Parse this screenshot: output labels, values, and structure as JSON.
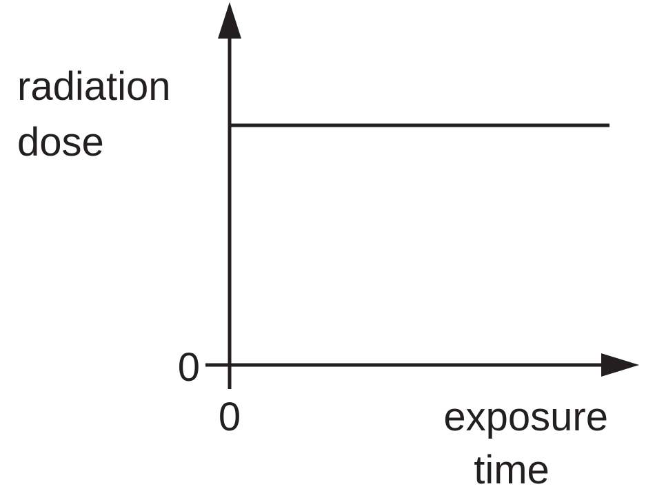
{
  "y_axis": {
    "label": [
      "radiation",
      "dose"
    ],
    "origin_label": "0"
  },
  "x_axis": {
    "label": [
      "exposure",
      "time"
    ],
    "origin_label": "0"
  }
}
